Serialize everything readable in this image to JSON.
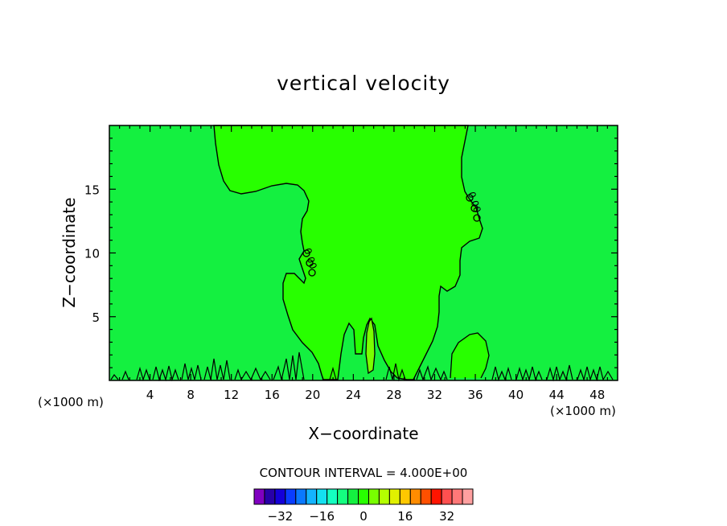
{
  "chart_data": {
    "type": "contour",
    "title": "vertical velocity",
    "xlabel": "X−coordinate",
    "ylabel": "Z−coordinate",
    "x_unit_left": "(×1000 m)",
    "x_unit_right": "(×1000 m)",
    "xlim": [
      0,
      50
    ],
    "ylim": [
      0,
      20
    ],
    "x_ticks": [
      4,
      8,
      12,
      16,
      20,
      24,
      28,
      32,
      36,
      40,
      44,
      48
    ],
    "y_ticks": [
      5,
      10,
      15
    ],
    "contour_labels": [
      {
        "text": "0.00",
        "x": 19.6,
        "y": 9.0
      },
      {
        "text": "0.00",
        "x": 35.8,
        "y": 13.0
      }
    ],
    "contour_interval_text": "CONTOUR INTERVAL = 4.000E+00",
    "colorbar": {
      "colors": [
        "#8000c0",
        "#2800a8",
        "#1400d8",
        "#0a3cff",
        "#0a78ff",
        "#14b4ff",
        "#14e0f0",
        "#14ffc0",
        "#14ff80",
        "#14f040",
        "#28ff00",
        "#78ff00",
        "#b4ff00",
        "#e0f000",
        "#ffc800",
        "#ff8c00",
        "#ff5000",
        "#ff1400",
        "#ff5050",
        "#ff7878",
        "#ffa0a0"
      ],
      "tick_labels": [
        "−32",
        "−16",
        "0",
        "16",
        "32"
      ]
    },
    "field_colors": {
      "background": "#14f040",
      "updraft": "#28ff00",
      "core": "#78ff00"
    }
  }
}
